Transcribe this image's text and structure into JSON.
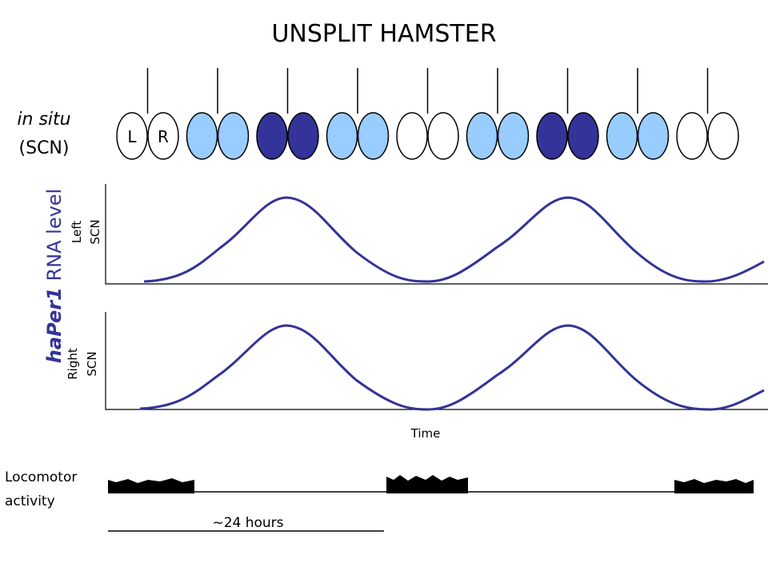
{
  "title": "UNSPLIT HAMSTER",
  "in_situ": {
    "line1": "in situ",
    "line2": "(SCN)"
  },
  "pairs": [
    {
      "left": "L",
      "right": "R",
      "fill": "#ffffff"
    },
    {
      "fill": "#99ccff"
    },
    {
      "fill": "#333399"
    },
    {
      "fill": "#99ccff"
    },
    {
      "fill": "#ffffff"
    },
    {
      "fill": "#99ccff"
    },
    {
      "fill": "#333399"
    },
    {
      "fill": "#99ccff"
    },
    {
      "fill": "#ffffff"
    }
  ],
  "y_label": {
    "gene": "haPer1",
    "rest": " RNA level"
  },
  "left_scn": [
    "Left",
    "SCN"
  ],
  "right_scn": [
    "Right",
    "SCN"
  ],
  "time_label": "Time",
  "locomotor": [
    "Locomotor",
    "activity"
  ],
  "period_label": "~24 hours"
}
